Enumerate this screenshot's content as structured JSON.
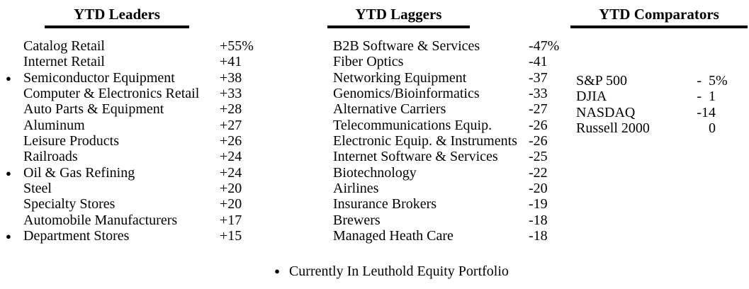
{
  "page": {
    "background_color": "#ffffff",
    "text_color": "#000000"
  },
  "leaders": {
    "title": "YTD Leaders",
    "rows": [
      {
        "bullet": "",
        "label": "Catalog Retail",
        "value": "+55%"
      },
      {
        "bullet": "",
        "label": "Internet Retail",
        "value": "+41"
      },
      {
        "bullet": "●",
        "label": "Semiconductor Equipment",
        "value": "+38"
      },
      {
        "bullet": "",
        "label": "Computer & Electronics Retail",
        "value": "+33"
      },
      {
        "bullet": "",
        "label": "Auto Parts & Equipment",
        "value": "+28"
      },
      {
        "bullet": "",
        "label": "Aluminum",
        "value": "+27"
      },
      {
        "bullet": "",
        "label": "Leisure Products",
        "value": "+26"
      },
      {
        "bullet": "",
        "label": "Railroads",
        "value": "+24"
      },
      {
        "bullet": "●",
        "label": "Oil & Gas Refining",
        "value": "+24"
      },
      {
        "bullet": "",
        "label": "Steel",
        "value": "+20"
      },
      {
        "bullet": "",
        "label": "Specialty Stores",
        "value": "+20"
      },
      {
        "bullet": "",
        "label": "Automobile Manufacturers",
        "value": "+17"
      },
      {
        "bullet": "●",
        "label": "Department Stores",
        "value": "+15"
      }
    ]
  },
  "laggers": {
    "title": "YTD Laggers",
    "rows": [
      {
        "bullet": "",
        "label": "B2B Software & Services",
        "value": "-47%"
      },
      {
        "bullet": "",
        "label": "Fiber Optics",
        "value": "-41"
      },
      {
        "bullet": "",
        "label": "Networking Equipment",
        "value": "-37"
      },
      {
        "bullet": "",
        "label": "Genomics/Bioinformatics",
        "value": "-33"
      },
      {
        "bullet": "",
        "label": "Alternative Carriers",
        "value": "-27"
      },
      {
        "bullet": "",
        "label": "Telecommunications Equip.",
        "value": "-26"
      },
      {
        "bullet": "",
        "label": "Electronic Equip. & Instruments",
        "value": "-26"
      },
      {
        "bullet": "",
        "label": "Internet Software & Services",
        "value": "-25"
      },
      {
        "bullet": "",
        "label": "Biotechnology",
        "value": "-22"
      },
      {
        "bullet": "",
        "label": "Airlines",
        "value": "-20"
      },
      {
        "bullet": "",
        "label": "Insurance Brokers",
        "value": "-19"
      },
      {
        "bullet": "",
        "label": "Brewers",
        "value": "-18"
      },
      {
        "bullet": "",
        "label": "Managed Heath Care",
        "value": "-18"
      }
    ]
  },
  "comparators": {
    "title": "YTD Comparators",
    "rows": [
      {
        "label": "S&P 500",
        "value": "-  5",
        "suffix": "%"
      },
      {
        "label": "DJIA",
        "value": "-  1",
        "suffix": ""
      },
      {
        "label": "NASDAQ",
        "value": "-14",
        "suffix": ""
      },
      {
        "label": "Russell 2000",
        "value": "0",
        "suffix": ""
      }
    ]
  },
  "footnote": {
    "bullet": "●",
    "text": "Currently In Leuthold Equity Portfolio"
  }
}
